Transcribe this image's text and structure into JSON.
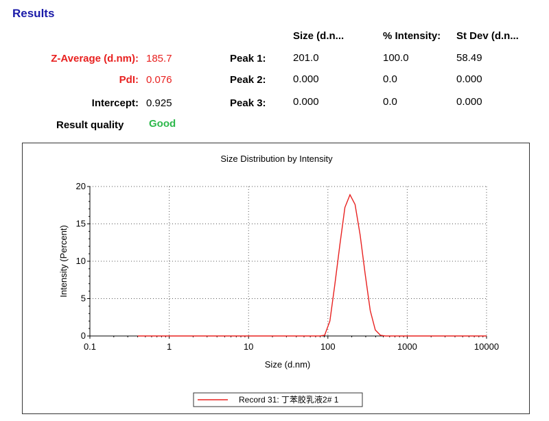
{
  "results": {
    "title": "Results",
    "headers": {
      "size": "Size (d.n...",
      "intensity": "% Intensity:",
      "stdev": "St Dev (d.n..."
    },
    "z_average": {
      "label": "Z-Average (d.nm):",
      "value": "185.7"
    },
    "pdi": {
      "label": "PdI:",
      "value": "0.076"
    },
    "intercept": {
      "label": "Intercept:",
      "value": "0.925"
    },
    "quality": {
      "label": "Result quality",
      "value": "Good"
    },
    "peaks": [
      {
        "label": "Peak 1:",
        "size": "201.0",
        "intensity": "100.0",
        "stdev": "58.49"
      },
      {
        "label": "Peak 2:",
        "size": "0.000",
        "intensity": "0.0",
        "stdev": "0.000"
      },
      {
        "label": "Peak 3:",
        "size": "0.000",
        "intensity": "0.0",
        "stdev": "0.000"
      }
    ]
  },
  "colors": {
    "title": "#1a1aa8",
    "highlight": "#e8201f",
    "good": "#2db84b",
    "series": "#e8201f"
  },
  "chart_data": {
    "type": "line",
    "title": "Size Distribution by Intensity",
    "xlabel": "Size (d.nm)",
    "ylabel": "Intensity (Percent)",
    "xscale": "log",
    "xlim": [
      0.1,
      10000
    ],
    "ylim": [
      0,
      20
    ],
    "xticks": [
      "0.1",
      "1",
      "10",
      "100",
      "1000",
      "10000"
    ],
    "yticks": [
      "0",
      "5",
      "10",
      "15",
      "20"
    ],
    "grid": true,
    "legend_position": "bottom-center",
    "series": [
      {
        "name": "Record 31: 丁苯胶乳液2# 1",
        "color": "#e8201f",
        "x": [
          0.4,
          1,
          10,
          68,
          79,
          91,
          106,
          122,
          142,
          164,
          190,
          220,
          255,
          295,
          342,
          396,
          459,
          531,
          615,
          1000,
          10000
        ],
        "y": [
          0,
          0,
          0,
          0,
          0,
          0.1,
          2.0,
          6.8,
          12.3,
          17.2,
          18.9,
          17.6,
          13.5,
          8.3,
          3.4,
          0.8,
          0.1,
          0,
          0,
          0,
          0
        ]
      }
    ]
  }
}
